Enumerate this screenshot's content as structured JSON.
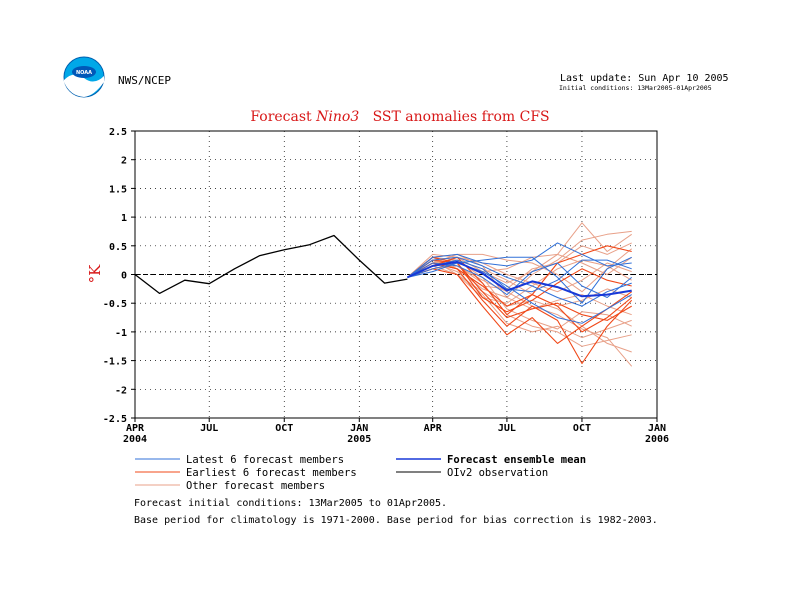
{
  "header": {
    "agency": "NWS/NCEP",
    "logo_text": "NOAA",
    "last_update": "Last update: Sun Apr 10 2005",
    "initial_conditions": "Initial conditions: 13Mar2005-01Apr2005"
  },
  "colors": {
    "latest": "#3070d8",
    "earliest": "#f04818",
    "other": "#e8a088",
    "mean": "#1838d8",
    "observation": "#000000",
    "title": "#d81818",
    "logo": "#00a0e0"
  },
  "chart_data": {
    "type": "line",
    "title_parts": [
      "Forecast ",
      "Nino3",
      "  SST anomalies from CFS"
    ],
    "ylabel": "°K",
    "ylim": [
      -2.5,
      2.5
    ],
    "yticks": [
      "2.5",
      "2",
      "1.5",
      "1",
      "0.5",
      "0",
      "-0.5",
      "-1",
      "-1.5",
      "-2",
      "-2.5"
    ],
    "ytick_values": [
      2.5,
      2,
      1.5,
      1,
      0.5,
      0,
      -0.5,
      -1,
      -1.5,
      -2,
      -2.5
    ],
    "xlim": [
      "2004-04-01",
      "2006-01-01"
    ],
    "xticks": [
      {
        "date": "2004-04-01",
        "label": "APR",
        "year": "2004"
      },
      {
        "date": "2004-07-01",
        "label": "JUL",
        "year": ""
      },
      {
        "date": "2004-10-01",
        "label": "OCT",
        "year": ""
      },
      {
        "date": "2005-01-01",
        "label": "JAN",
        "year": "2005"
      },
      {
        "date": "2005-04-01",
        "label": "APR",
        "year": ""
      },
      {
        "date": "2005-07-01",
        "label": "JUL",
        "year": ""
      },
      {
        "date": "2005-10-01",
        "label": "OCT",
        "year": ""
      },
      {
        "date": "2006-01-01",
        "label": "JAN",
        "year": "2006"
      }
    ],
    "grid": true,
    "zero_line": true,
    "observation": {
      "x": [
        "2004-04-01",
        "2004-05-01",
        "2004-06-01",
        "2004-07-01",
        "2004-08-01",
        "2004-09-01",
        "2004-10-01",
        "2004-11-01",
        "2004-12-01",
        "2005-01-01",
        "2005-02-01",
        "2005-03-01"
      ],
      "y": [
        0.0,
        -0.33,
        -0.1,
        -0.16,
        0.1,
        0.33,
        0.43,
        0.52,
        0.68,
        0.25,
        -0.15,
        -0.08
      ]
    },
    "forecast_x": [
      "2005-03-01",
      "2005-04-01",
      "2005-05-01",
      "2005-06-01",
      "2005-07-01",
      "2005-08-01",
      "2005-09-01",
      "2005-10-01",
      "2005-11-01",
      "2005-12-01"
    ],
    "ensemble_mean": [
      -0.05,
      0.15,
      0.22,
      0.02,
      -0.28,
      -0.12,
      -0.22,
      -0.38,
      -0.35,
      -0.28
    ],
    "latest_members": [
      [
        -0.05,
        0.3,
        0.35,
        0.2,
        0.15,
        0.25,
        0.55,
        0.35,
        0.15,
        0.2
      ],
      [
        -0.05,
        0.15,
        0.25,
        0.1,
        -0.25,
        -0.3,
        -0.1,
        0.25,
        0.25,
        0.1
      ],
      [
        -0.05,
        0.1,
        0.2,
        0.05,
        -0.2,
        -0.5,
        -0.75,
        -0.85,
        -0.6,
        -0.35
      ],
      [
        -0.05,
        0.2,
        0.15,
        -0.05,
        -0.35,
        0.05,
        0.2,
        -0.2,
        -0.4,
        -0.05
      ],
      [
        -0.05,
        0.05,
        0.2,
        0.25,
        0.3,
        0.3,
        -0.05,
        -0.5,
        0.1,
        0.3
      ],
      [
        -0.05,
        0.25,
        0.3,
        0.15,
        -0.05,
        -0.2,
        -0.4,
        -0.55,
        -0.3,
        -0.15
      ]
    ],
    "earliest_members": [
      [
        -0.05,
        0.25,
        0.2,
        -0.3,
        -0.75,
        -0.6,
        -0.5,
        -0.7,
        -0.8,
        -0.55
      ],
      [
        -0.05,
        0.2,
        0.1,
        -0.45,
        -0.9,
        -0.55,
        -0.8,
        -1.55,
        -0.9,
        -0.45
      ],
      [
        -0.05,
        0.15,
        0.3,
        -0.15,
        -0.7,
        -0.35,
        -0.55,
        -1.0,
        -0.75,
        -0.4
      ],
      [
        -0.05,
        0.2,
        0.1,
        -0.2,
        -0.55,
        -0.35,
        0.2,
        0.35,
        0.5,
        0.4
      ],
      [
        -0.05,
        0.1,
        0.0,
        -0.55,
        -1.05,
        -0.75,
        -1.2,
        -0.9,
        -0.6,
        -0.3
      ],
      [
        -0.05,
        0.3,
        0.2,
        -0.4,
        -0.65,
        -0.45,
        -0.15,
        0.1,
        -0.1,
        -0.2
      ]
    ],
    "other_members": [
      [
        -0.05,
        0.35,
        0.3,
        0.05,
        0.1,
        0.3,
        0.35,
        0.9,
        0.4,
        0.7
      ],
      [
        -0.05,
        0.3,
        0.1,
        -0.25,
        -0.4,
        0.0,
        0.25,
        0.6,
        0.7,
        0.75
      ],
      [
        -0.05,
        0.2,
        0.35,
        0.35,
        0.25,
        0.2,
        0.0,
        -0.3,
        0.1,
        0.45
      ],
      [
        -0.05,
        0.15,
        0.0,
        -0.3,
        -0.55,
        -0.45,
        -0.6,
        -0.9,
        -1.2,
        -1.35
      ],
      [
        -0.05,
        0.25,
        0.15,
        -0.1,
        -0.3,
        -0.55,
        -0.7,
        -0.95,
        -1.1,
        -1.6
      ],
      [
        -0.05,
        0.1,
        0.2,
        0.05,
        -0.15,
        0.05,
        0.35,
        0.2,
        0.0,
        0.3
      ],
      [
        -0.05,
        0.3,
        0.25,
        -0.05,
        -0.6,
        -0.8,
        -0.95,
        -0.65,
        -0.7,
        -0.9
      ],
      [
        -0.05,
        0.2,
        0.05,
        -0.35,
        -0.85,
        -1.0,
        -0.9,
        -1.1,
        -0.95,
        -0.8
      ],
      [
        -0.05,
        0.15,
        0.3,
        0.2,
        0.0,
        -0.15,
        -0.3,
        -0.1,
        0.2,
        0.05
      ],
      [
        -0.05,
        0.25,
        0.1,
        -0.2,
        -0.25,
        0.1,
        0.2,
        0.5,
        0.35,
        0.55
      ],
      [
        -0.05,
        0.3,
        0.35,
        0.15,
        -0.4,
        -0.6,
        -0.45,
        -0.35,
        -0.55,
        -0.7
      ],
      [
        -0.05,
        0.1,
        0.15,
        -0.15,
        -0.7,
        -0.9,
        -1.0,
        -1.25,
        -1.15,
        -1.05
      ],
      [
        -0.05,
        0.2,
        0.25,
        0.1,
        -0.1,
        -0.35,
        -0.55,
        -0.45,
        -0.25,
        -0.4
      ],
      [
        -0.05,
        0.25,
        0.0,
        -0.4,
        -0.5,
        -0.2,
        0.1,
        0.25,
        0.15,
        -0.1
      ]
    ],
    "legend": [
      {
        "key": "latest",
        "label": "Latest 6 forecast members",
        "bold": false
      },
      {
        "key": "mean",
        "label": "Forecast ensemble mean",
        "bold": true
      },
      {
        "key": "earliest",
        "label": "Earliest 6 forecast members",
        "bold": false
      },
      {
        "key": "observation",
        "label": "OIv2 observation",
        "bold": false
      },
      {
        "key": "other",
        "label": "Other forecast members",
        "bold": false
      }
    ]
  },
  "footer": {
    "line1": "Forecast initial conditions: 13Mar2005 to 01Apr2005.",
    "line2": "Base period for climatology is 1971-2000. Base period for bias correction is 1982-2003."
  }
}
